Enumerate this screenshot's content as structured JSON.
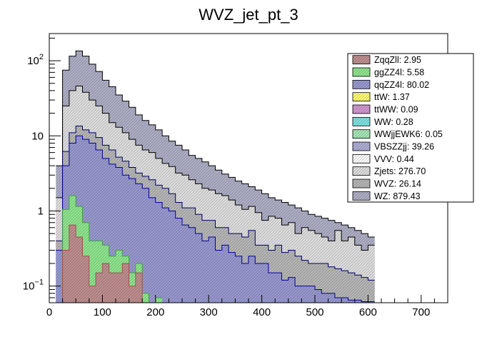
{
  "chart_data": {
    "type": "area",
    "title": "WVZ_jet_pt_3",
    "xlabel": "",
    "ylabel": "",
    "yscale": "log",
    "xlim": [
      0,
      750
    ],
    "ylim": [
      0.06,
      230
    ],
    "bin_width": 12.5,
    "bin_start": 12.5,
    "x_ticks": [
      0,
      100,
      200,
      300,
      400,
      500,
      600,
      700
    ],
    "y_ticks": [
      {
        "value": 100,
        "base": "10",
        "exp": "2"
      },
      {
        "value": 10,
        "base": "10",
        "exp": ""
      },
      {
        "value": 1,
        "base": "1",
        "exp": ""
      },
      {
        "value": 0.1,
        "base": "10",
        "exp": "−1"
      }
    ],
    "legend_position": "top-right",
    "legend": [
      {
        "label": "ZqqZll: 2.95",
        "color": "#c09090"
      },
      {
        "label": "ggZZ4l: 5.58",
        "color": "#90e890"
      },
      {
        "label": "qqZZ4l: 80.02",
        "color": "#9a9ad2"
      },
      {
        "label": "ttW: 1.37",
        "color": "#ffff70"
      },
      {
        "label": "ttWW: 0.09",
        "color": "#d29ad2"
      },
      {
        "label": "WW: 0.28",
        "color": "#80e4e4"
      },
      {
        "label": "WWjjEWK6: 0.05",
        "color": "#a8e8b8"
      },
      {
        "label": "VBSZZjj: 39.26",
        "color": "#b0b0d8"
      },
      {
        "label": "VVV: 0.44",
        "color": "#ffffff"
      },
      {
        "label": "Zjets: 276.70",
        "color": "#e0e0e0"
      },
      {
        "label": "WVZ: 26.14",
        "color": "#b8b8b8"
      },
      {
        "label": "WZ: 879.43",
        "color": "#b0b0c8"
      }
    ],
    "series": [
      {
        "name": "ZqqZll: 2.95",
        "color": "#c09090",
        "line": "#a05050",
        "values": [
          0,
          0.3,
          0.65,
          0.45,
          0.25,
          0.1,
          0.15,
          0.2,
          0.15,
          0.15,
          0.2,
          0.1,
          0.15,
          0.0
        ]
      },
      {
        "name": "ggZZ4l: 5.58",
        "color": "#90e890",
        "line": "#40a040",
        "values": [
          0,
          1.05,
          1.6,
          1.15,
          0.7,
          0.4,
          0.4,
          0.35,
          0.25,
          0.3,
          0.25,
          0.15,
          0.2,
          0.08,
          0.03,
          0.07
        ]
      },
      {
        "name": "qqZZ4l: 80.02",
        "color": "#9a9ad2",
        "line": "#000099",
        "values": [
          0.3,
          4.0,
          8.0,
          10.0,
          9.0,
          8.0,
          6.5,
          5.0,
          4.2,
          3.8,
          3.0,
          2.7,
          2.3,
          2.0,
          1.5,
          1.3,
          1.1,
          1.0,
          0.8,
          0.65,
          0.6,
          0.5,
          0.4,
          0.45,
          0.3,
          0.35,
          0.28,
          0.25,
          0.2,
          0.25,
          0.2,
          0.2,
          0.15,
          0.15,
          0.12,
          0.13,
          0.1,
          0.1,
          0.1,
          0.09,
          0.08,
          0.08,
          0.07,
          0.07,
          0.065,
          0.065,
          0.062,
          0.062
        ]
      },
      {
        "name": "WVZ: 26.14",
        "color": "#b8b8b8",
        "line": "#000066",
        "values": [
          0.4,
          6.2,
          11.0,
          13.5,
          12.0,
          11.0,
          9.5,
          7.5,
          6.5,
          5.2,
          4.6,
          3.8,
          3.2,
          2.9,
          2.6,
          2.2,
          2.0,
          1.7,
          1.3,
          1.1,
          1.1,
          0.9,
          0.75,
          0.75,
          0.6,
          0.6,
          0.5,
          0.5,
          0.45,
          0.55,
          0.35,
          0.35,
          0.3,
          0.35,
          0.28,
          0.3,
          0.25,
          0.22,
          0.2,
          0.2,
          0.2,
          0.18,
          0.17,
          0.16,
          0.15,
          0.14,
          0.13,
          0.12
        ]
      },
      {
        "name": "Zjets: 276.70",
        "color": "#e0e0e0",
        "line": "#000000",
        "values": [
          1.5,
          25.0,
          40.0,
          46.0,
          38.0,
          30.0,
          25.0,
          20.0,
          15.0,
          13.0,
          11.0,
          9.0,
          7.5,
          6.5,
          6.0,
          5.0,
          4.3,
          3.9,
          3.2,
          3.0,
          2.6,
          2.3,
          2.0,
          1.9,
          1.7,
          1.6,
          1.4,
          1.2,
          1.05,
          1.15,
          0.95,
          0.75,
          0.85,
          0.8,
          0.65,
          0.7,
          0.5,
          0.6,
          0.55,
          0.5,
          0.45,
          0.4,
          0.55,
          0.4,
          0.45,
          0.35,
          0.3,
          0.35
        ]
      },
      {
        "name": "WZ: 879.43",
        "color": "#b0b0c8",
        "line": "#000000",
        "values": [
          4.0,
          75.0,
          115.0,
          135.0,
          115.0,
          90.0,
          72.0,
          55.0,
          45.0,
          35.0,
          29.0,
          24.0,
          19.0,
          16.0,
          14.0,
          12.0,
          10.0,
          8.5,
          7.5,
          6.5,
          5.5,
          5.0,
          4.5,
          4.0,
          3.5,
          3.1,
          2.8,
          2.5,
          2.3,
          2.1,
          1.9,
          1.7,
          1.5,
          1.4,
          1.3,
          1.2,
          1.1,
          1.0,
          0.9,
          0.85,
          0.8,
          0.75,
          0.7,
          0.65,
          0.6,
          0.55,
          0.5,
          0.45
        ]
      }
    ]
  }
}
